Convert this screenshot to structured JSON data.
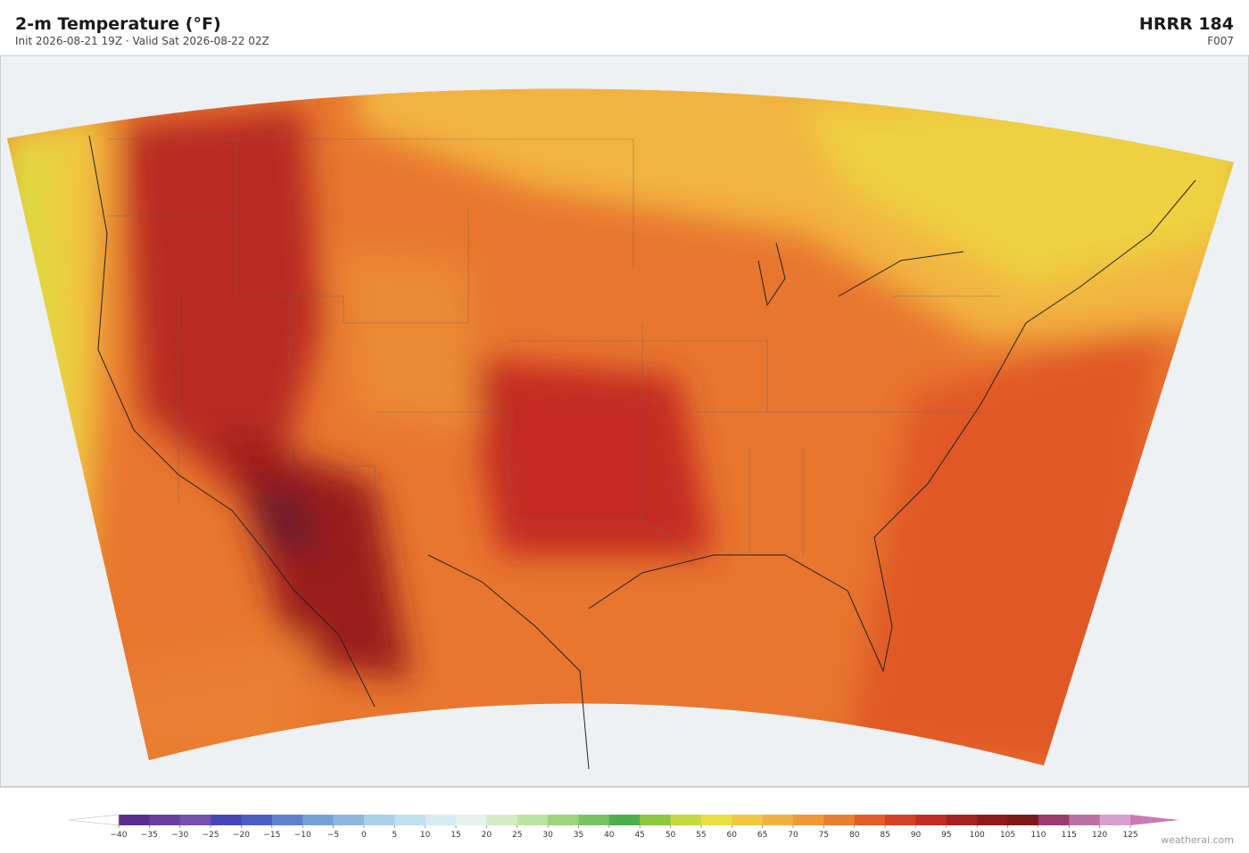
{
  "header": {
    "title": "2-m Temperature  (°F)",
    "subtitle": "Init 2026-08-21 19Z   ·   Valid Sat 2026-08-22 02Z",
    "model": "HRRR  184",
    "forecast_hour": "F007"
  },
  "colorbar": {
    "ticks": [
      {
        "value": -40,
        "label": "−40"
      },
      {
        "value": -35,
        "label": "−35"
      },
      {
        "value": -30,
        "label": "−30"
      },
      {
        "value": -25,
        "label": "−25"
      },
      {
        "value": -20,
        "label": "−20"
      },
      {
        "value": -15,
        "label": "−15"
      },
      {
        "value": -10,
        "label": "−10"
      },
      {
        "value": -5,
        "label": "−5"
      },
      0,
      5,
      10,
      15,
      20,
      25,
      30,
      35,
      40,
      45,
      50,
      55,
      60,
      65,
      70,
      75,
      80,
      85,
      90,
      95,
      100,
      105,
      110,
      115,
      120,
      125
    ],
    "colors": [
      "#5a2d91",
      "#6a3ea0",
      "#7650b0",
      "#4646b8",
      "#4a5fc4",
      "#5c82d0",
      "#74a0d8",
      "#8cb8e0",
      "#a8d0e8",
      "#bde0ee",
      "#d4ecf2",
      "#e4f4ec",
      "#d4ecc4",
      "#bce2a0",
      "#9cd47c",
      "#78c460",
      "#4cae4c",
      "#8cc840",
      "#c4d840",
      "#e8e040",
      "#f2c840",
      "#f0b040",
      "#ee9838",
      "#ea7e30",
      "#e45c28",
      "#d84024",
      "#c42c22",
      "#a82020",
      "#8e1a1a",
      "#7c1818",
      "#9a3c6c",
      "#bc70a4",
      "#d8a0cc"
    ],
    "extend_min_color": "#ffffff",
    "extend_max_color": "#c77cb4"
  },
  "credit": "weatherai.com"
}
